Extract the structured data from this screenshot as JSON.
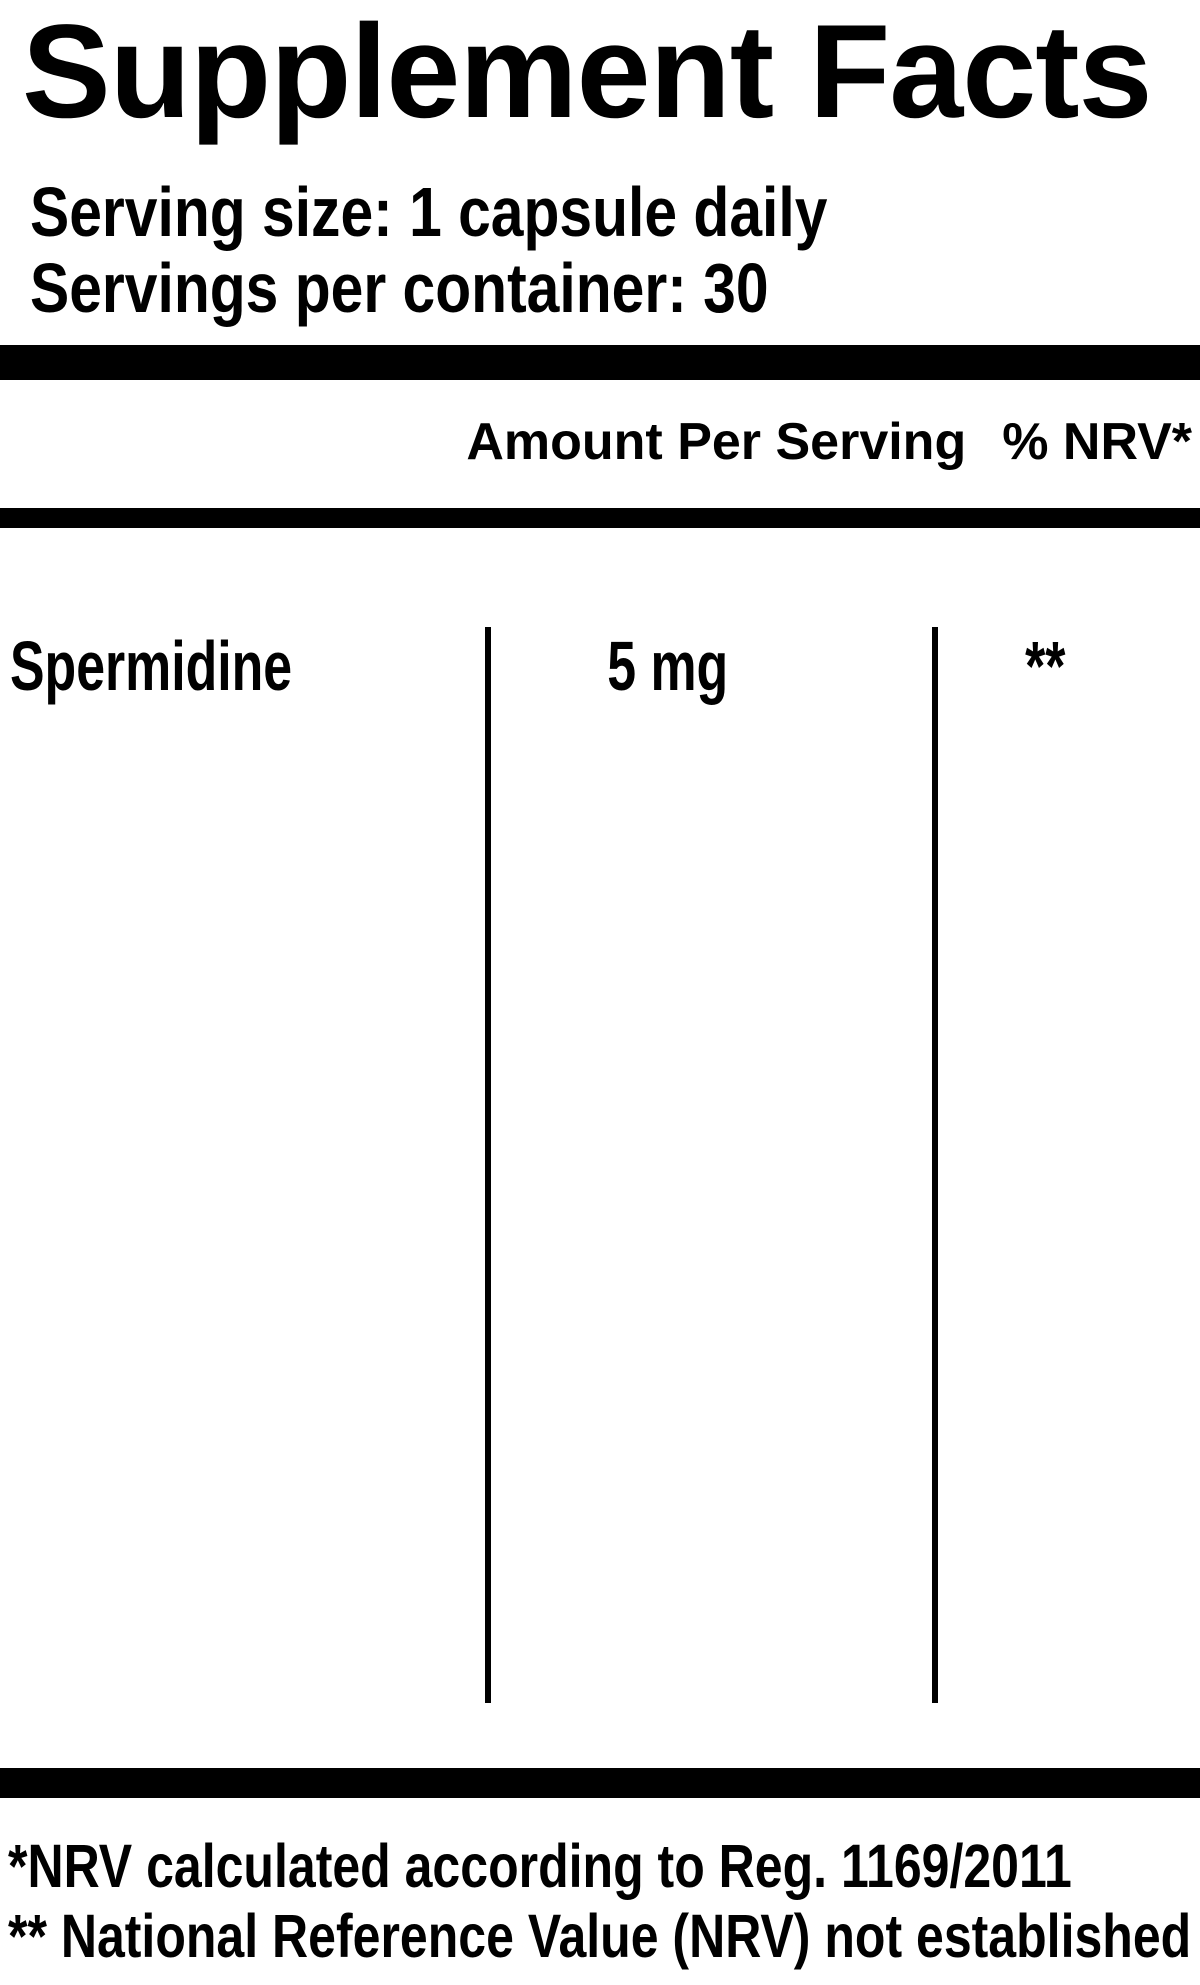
{
  "title": "Supplement Facts",
  "serving_info": {
    "serving_size": "Serving size: 1 capsule daily",
    "servings_per_container": "Servings per container: 30"
  },
  "table": {
    "header": {
      "amount_label": "Amount Per Serving",
      "nrv_label": "% NRV*"
    },
    "rows": [
      {
        "name": "Spermidine",
        "amount": "5 mg",
        "nrv": "**"
      }
    ]
  },
  "footnotes": [
    "*NRV calculated according to Reg. 1169/2011",
    "** National Reference Value (NRV) not established"
  ],
  "colors": {
    "text": "#000000",
    "background": "#ffffff"
  }
}
